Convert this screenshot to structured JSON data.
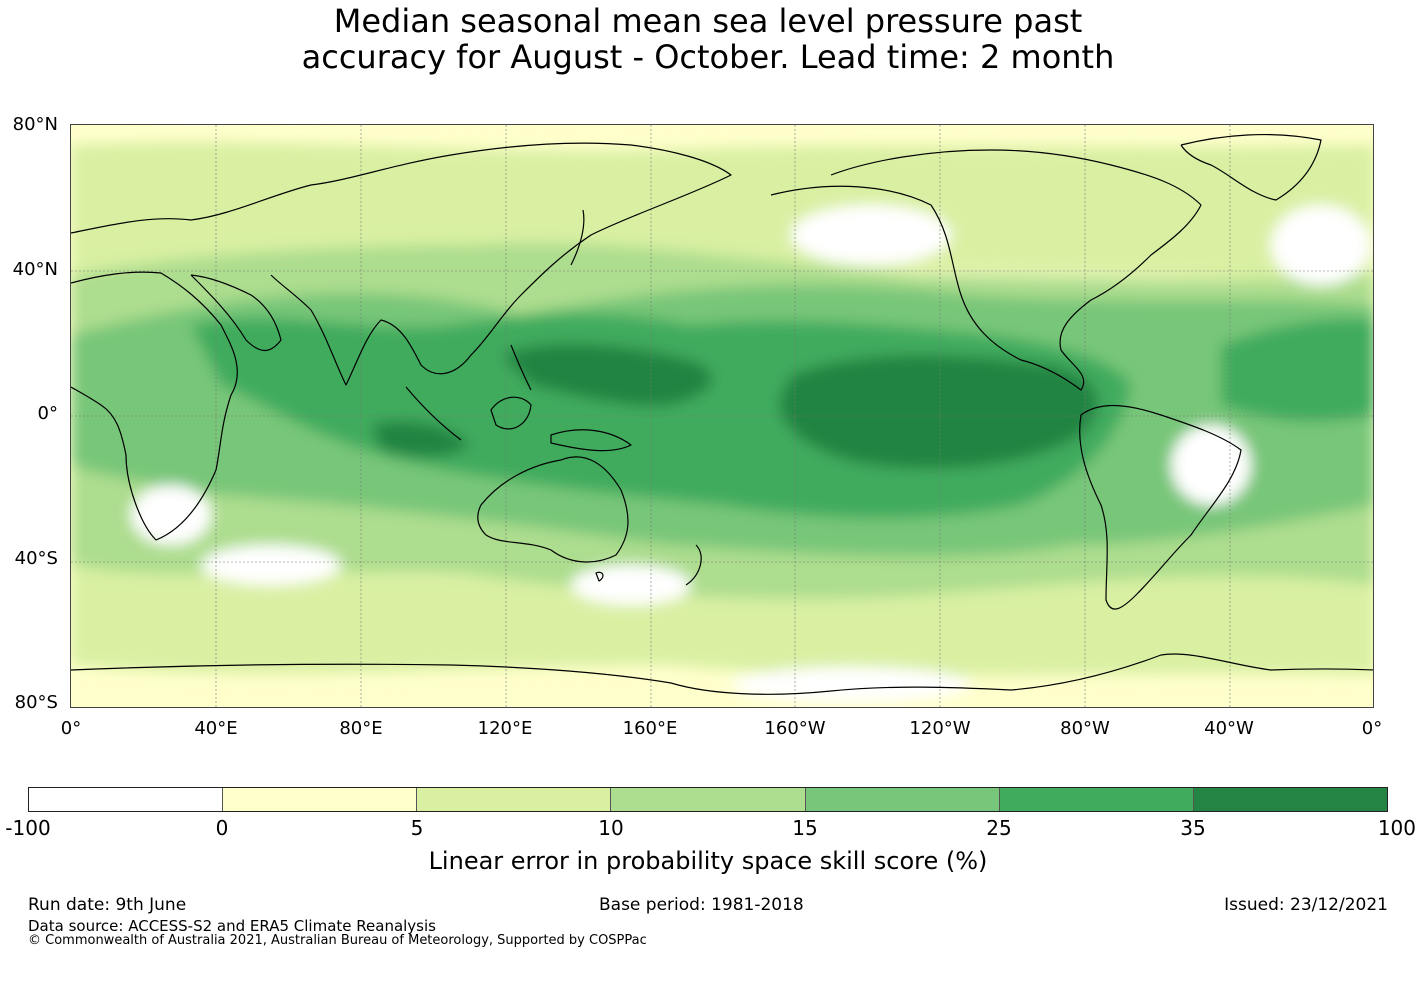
{
  "title": {
    "line1": "Median seasonal mean sea level pressure past",
    "line2": "accuracy for August - October. Lead time: 2 month"
  },
  "map": {
    "lat_labels": [
      "80°N",
      "40°N",
      "0°",
      "40°S",
      "80°S"
    ],
    "lon_labels": [
      "0°",
      "40°E",
      "80°E",
      "120°E",
      "160°E",
      "160°W",
      "120°W",
      "80°W",
      "40°W",
      "0°"
    ],
    "projection": "equirectangular, 0° to 360° longitude, 80°S to 80°N",
    "gridlines": true
  },
  "colorbar": {
    "label": "Linear error in probability space skill score (%)",
    "ticks": [
      "-100",
      "0",
      "5",
      "10",
      "15",
      "25",
      "35",
      "100"
    ],
    "colors": [
      "#ffffff",
      "#ffffcc",
      "#d9f0a3",
      "#addd8e",
      "#78c679",
      "#41ab5d",
      "#238443"
    ]
  },
  "footer": {
    "run_date": "Run date: 9th June",
    "base_period": "Base period: 1981-2018",
    "issued": "Issued: 23/12/2021",
    "data_source": "Data source: ACCESS-S2 and ERA5 Climate Reanalysis",
    "copyright": "© Commonwealth of Australia 2021, Australian Bureau of Meteorology, Supported by COSPPac"
  }
}
